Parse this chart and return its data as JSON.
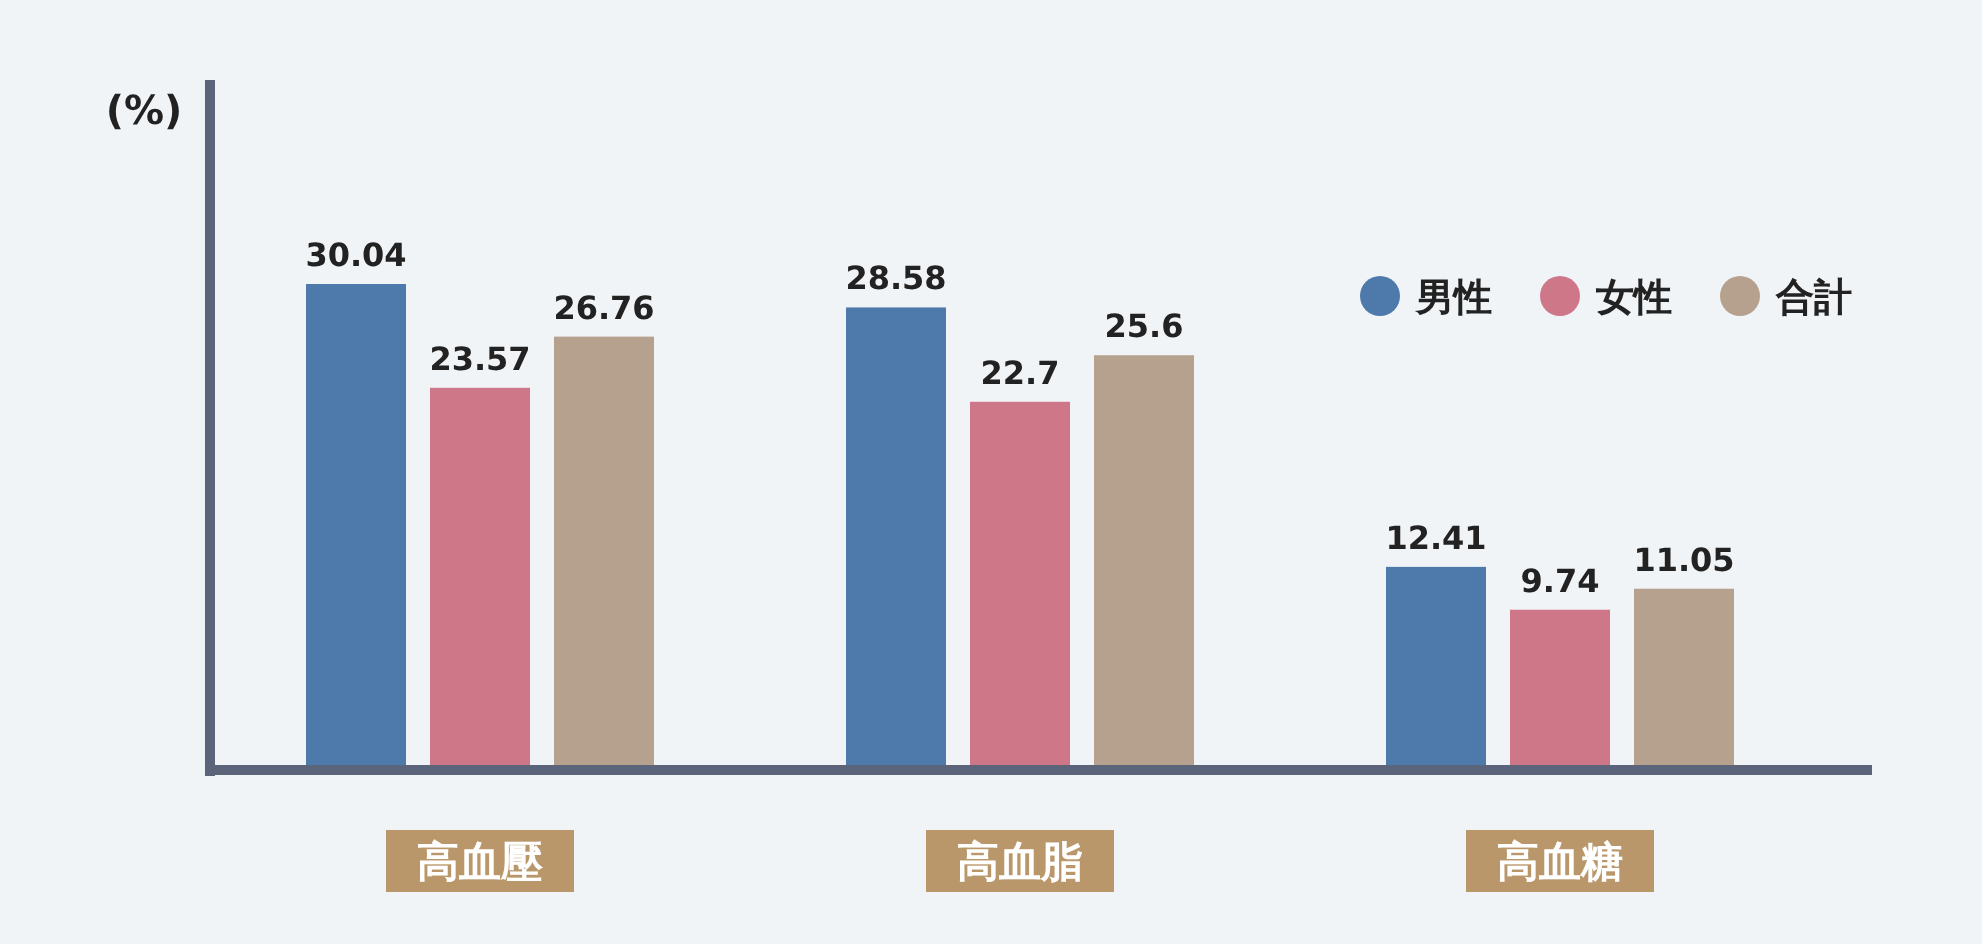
{
  "chart_data": {
    "type": "bar",
    "ylabel": "(%)",
    "categories": [
      "高血壓",
      "高血脂",
      "高血糖"
    ],
    "series": [
      {
        "name": "男性",
        "color": "#4e7aab",
        "values": [
          30.04,
          28.58,
          12.41
        ]
      },
      {
        "name": "女性",
        "color": "#cd7789",
        "values": [
          23.57,
          22.7,
          9.74
        ]
      },
      {
        "name": "合計",
        "color": "#b5a18e",
        "values": [
          26.76,
          25.6,
          11.05
        ]
      }
    ],
    "data_labels": true,
    "legend": "top right"
  }
}
